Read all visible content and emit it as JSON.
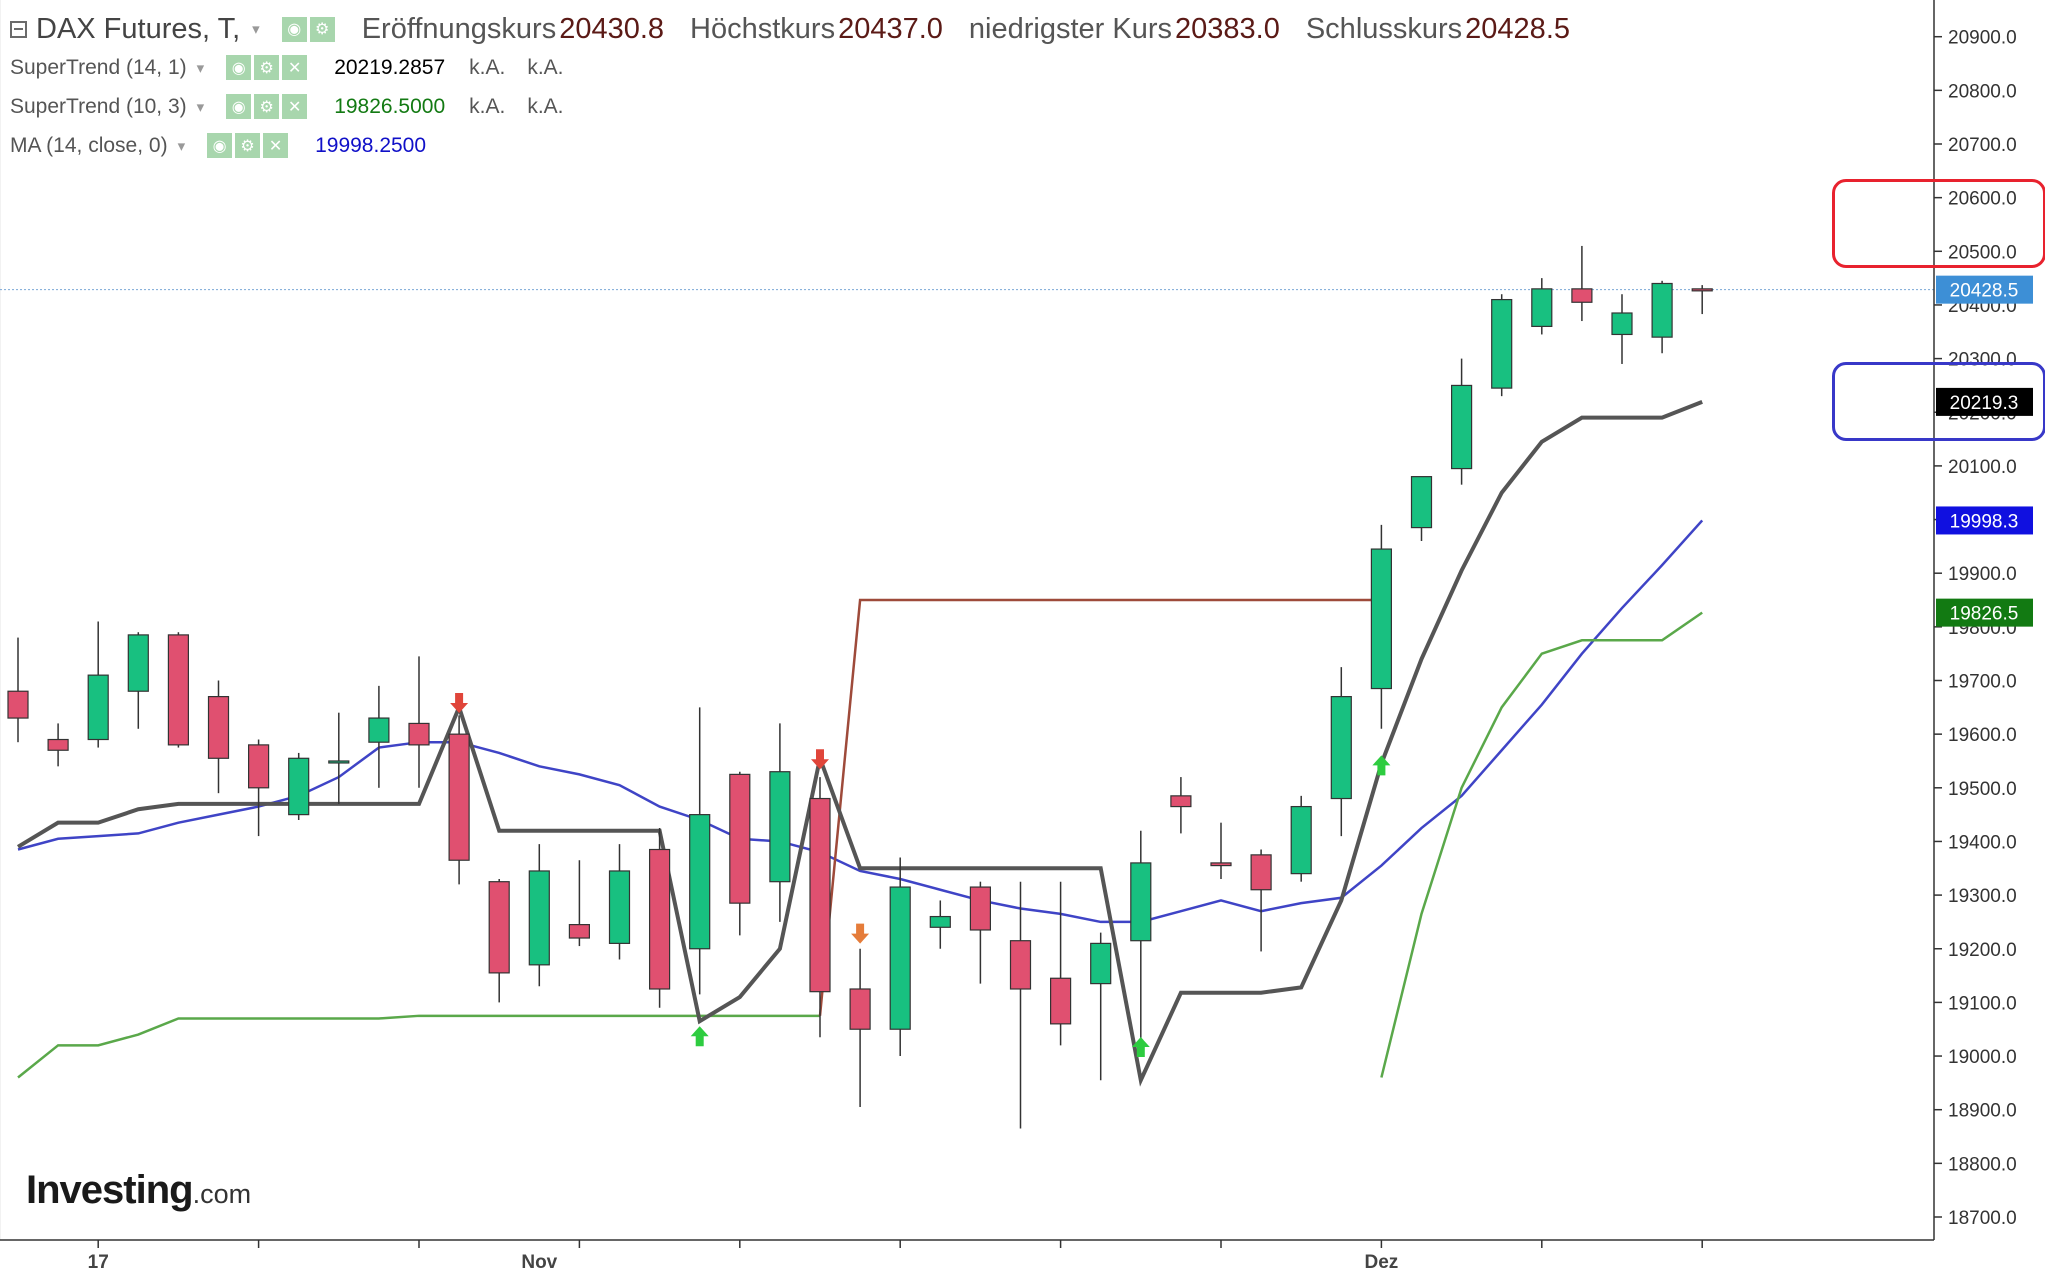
{
  "legend": {
    "symbol": "DAX Futures, T,",
    "open_label": "Eröffnungskurs",
    "open_value": "20430.8",
    "high_label": "Höchstkurs",
    "high_value": "20437.0",
    "low_label": "niedrigster Kurs",
    "low_value": "20383.0",
    "close_label": "Schlusskurs",
    "close_value": "20428.5",
    "indicators": [
      {
        "name": "SuperTrend (14, 1)",
        "value": "20219.2857",
        "na1": "k.A.",
        "na2": "k.A."
      },
      {
        "name": "SuperTrend (10, 3)",
        "value": "19826.5000",
        "na1": "k.A.",
        "na2": "k.A."
      },
      {
        "name": "MA (14, close, 0)",
        "value": "19998.2500"
      }
    ],
    "icons": {
      "eye": "eye-icon",
      "gear": "gear-icon",
      "close": "close-icon",
      "caret": "caret-down-icon"
    }
  },
  "logo": {
    "main": "Investing",
    "sub": ".com"
  },
  "chart_data": {
    "type": "candlestick",
    "title": "DAX Futures, T,",
    "ylim": [
      18650,
      20970
    ],
    "y_ticks": [
      "20900.0",
      "20800.0",
      "20700.0",
      "20600.0",
      "20500.0",
      "20400.0",
      "20300.0",
      "20200.0",
      "20100.0",
      "20000.0",
      "19900.0",
      "19800.0",
      "19700.0",
      "19600.0",
      "19500.0",
      "19400.0",
      "19300.0",
      "19200.0",
      "19100.0",
      "19000.0",
      "18900.0",
      "18800.0",
      "18700.0"
    ],
    "x_labels": [
      {
        "label": "17",
        "index": 2
      },
      {
        "label": "Nov",
        "index": 13
      },
      {
        "label": "Dez",
        "index": 34
      }
    ],
    "candles": [
      {
        "o": 19680,
        "h": 19780,
        "l": 19585,
        "c": 19630
      },
      {
        "o": 19590,
        "h": 19620,
        "l": 19540,
        "c": 19570
      },
      {
        "o": 19590,
        "h": 19810,
        "l": 19575,
        "c": 19710
      },
      {
        "o": 19680,
        "h": 19790,
        "l": 19610,
        "c": 19785
      },
      {
        "o": 19785,
        "h": 19790,
        "l": 19575,
        "c": 19580
      },
      {
        "o": 19670,
        "h": 19700,
        "l": 19490,
        "c": 19555
      },
      {
        "o": 19580,
        "h": 19590,
        "l": 19410,
        "c": 19500
      },
      {
        "o": 19450,
        "h": 19565,
        "l": 19440,
        "c": 19555
      },
      {
        "o": 19550,
        "h": 19640,
        "l": 19470,
        "c": 19550
      },
      {
        "o": 19585,
        "h": 19690,
        "l": 19500,
        "c": 19630
      },
      {
        "o": 19620,
        "h": 19745,
        "l": 19500,
        "c": 19580
      },
      {
        "o": 19600,
        "h": 19635,
        "l": 19320,
        "c": 19365
      },
      {
        "o": 19325,
        "h": 19330,
        "l": 19100,
        "c": 19155
      },
      {
        "o": 19170,
        "h": 19395,
        "l": 19130,
        "c": 19345
      },
      {
        "o": 19245,
        "h": 19365,
        "l": 19205,
        "c": 19220
      },
      {
        "o": 19210,
        "h": 19395,
        "l": 19180,
        "c": 19345
      },
      {
        "o": 19385,
        "h": 19425,
        "l": 19090,
        "c": 19125
      },
      {
        "o": 19200,
        "h": 19650,
        "l": 19115,
        "c": 19450
      },
      {
        "o": 19525,
        "h": 19530,
        "l": 19225,
        "c": 19285
      },
      {
        "o": 19325,
        "h": 19620,
        "l": 19250,
        "c": 19530
      },
      {
        "o": 19480,
        "h": 19520,
        "l": 19035,
        "c": 19120
      },
      {
        "o": 19125,
        "h": 19200,
        "l": 18905,
        "c": 19050
      },
      {
        "o": 19050,
        "h": 19370,
        "l": 19000,
        "c": 19315
      },
      {
        "o": 19240,
        "h": 19290,
        "l": 19200,
        "c": 19260
      },
      {
        "o": 19315,
        "h": 19325,
        "l": 19135,
        "c": 19235
      },
      {
        "o": 19215,
        "h": 19325,
        "l": 18865,
        "c": 19125
      },
      {
        "o": 19145,
        "h": 19325,
        "l": 19020,
        "c": 19060
      },
      {
        "o": 19135,
        "h": 19230,
        "l": 18955,
        "c": 19210
      },
      {
        "o": 19215,
        "h": 19420,
        "l": 19005,
        "c": 19360
      },
      {
        "o": 19485,
        "h": 19520,
        "l": 19415,
        "c": 19465
      },
      {
        "o": 19360,
        "h": 19435,
        "l": 19330,
        "c": 19355
      },
      {
        "o": 19375,
        "h": 19385,
        "l": 19195,
        "c": 19310
      },
      {
        "o": 19340,
        "h": 19485,
        "l": 19325,
        "c": 19465
      },
      {
        "o": 19480,
        "h": 19725,
        "l": 19410,
        "c": 19670
      },
      {
        "o": 19685,
        "h": 19990,
        "l": 19610,
        "c": 19945
      },
      {
        "o": 19985,
        "h": 20080,
        "l": 19960,
        "c": 20080
      },
      {
        "o": 20095,
        "h": 20300,
        "l": 20065,
        "c": 20250
      },
      {
        "o": 20245,
        "h": 20420,
        "l": 20230,
        "c": 20410
      },
      {
        "o": 20360,
        "h": 20450,
        "l": 20345,
        "c": 20430
      },
      {
        "o": 20430,
        "h": 20510,
        "l": 20370,
        "c": 20405
      },
      {
        "o": 20345,
        "h": 20420,
        "l": 20290,
        "c": 20385
      },
      {
        "o": 20340,
        "h": 20445,
        "l": 20310,
        "c": 20440
      },
      {
        "o": 20430,
        "h": 20437,
        "l": 20383,
        "c": 20428.5
      }
    ],
    "series": [
      {
        "name": "SuperTrend (14, 1)",
        "color": "#555555",
        "values": [
          19390,
          19435,
          19435,
          19460,
          19470,
          19470,
          19470,
          19470,
          19470,
          19470,
          19470,
          19650,
          19420,
          19420,
          19420,
          19420,
          19420,
          19065,
          19110,
          19200,
          19555,
          19350,
          19350,
          19350,
          19350,
          19350,
          19350,
          19350,
          18955,
          19118,
          19118,
          19118,
          19128,
          19290,
          19545,
          19740,
          19905,
          20050,
          20145,
          20190,
          20190,
          20190,
          20219.3
        ]
      },
      {
        "name": "SuperTrend (10, 3)",
        "color": "#5aa84a",
        "segments": [
          {
            "start": 0,
            "trend": "up",
            "color": "#5aa84a",
            "values": [
              18960,
              19020,
              19020,
              19040,
              19070,
              19070,
              19070,
              19070,
              19070,
              19070,
              19075,
              19075,
              19075,
              19075,
              19075,
              19075,
              19075,
              19075,
              19075,
              19075,
              19075
            ]
          },
          {
            "start": 20,
            "trend": "down",
            "color": "#9e4a3a",
            "values": [
              19075,
              19850,
              19850,
              19850,
              19850,
              19850,
              19850,
              19850,
              19850,
              19850,
              19850,
              19850,
              19850,
              19850,
              19850
            ]
          },
          {
            "start": 34,
            "trend": "up",
            "color": "#5aa84a",
            "values": [
              18960,
              19265,
              19500,
              19650,
              19750,
              19775,
              19775,
              19775,
              19826.5
            ]
          }
        ]
      },
      {
        "name": "MA (14, close, 0)",
        "color": "#3f44c6",
        "values": [
          19385,
          19405,
          19410,
          19415,
          19435,
          19450,
          19465,
          19485,
          19520,
          19575,
          19585,
          19585,
          19565,
          19540,
          19525,
          19505,
          19465,
          19440,
          19405,
          19400,
          19380,
          19345,
          19330,
          19310,
          19290,
          19275,
          19265,
          19250,
          19250,
          19270,
          19290,
          19270,
          19285,
          19295,
          19355,
          19425,
          19485,
          19570,
          19655,
          19750,
          19835,
          19915,
          19998.3
        ]
      }
    ],
    "signals": [
      {
        "index": 11,
        "dir": "down",
        "price": 19660,
        "color": "#e0453a"
      },
      {
        "index": 17,
        "dir": "up",
        "price": 19035,
        "color": "#2ecc40"
      },
      {
        "index": 20,
        "dir": "down",
        "price": 19555,
        "color": "#e0453a"
      },
      {
        "index": 21,
        "dir": "down",
        "price": 19230,
        "color": "#e57c3a"
      },
      {
        "index": 28,
        "dir": "up",
        "price": 19015,
        "color": "#2ecc40"
      },
      {
        "index": 34,
        "dir": "up",
        "price": 19540,
        "color": "#2ecc40"
      }
    ],
    "price_tags": [
      {
        "label": "20428.5",
        "price": 20428.5,
        "bg": "#3d8fd6"
      },
      {
        "label": "20219.3",
        "price": 20219.3,
        "bg": "#000000"
      },
      {
        "label": "19998.3",
        "price": 19998.3,
        "bg": "#1010e0"
      },
      {
        "label": "19826.5",
        "price": 19826.5,
        "bg": "#127a12"
      }
    ],
    "last_price_line": 20428.5,
    "colors": {
      "bull": "#18c080",
      "bear": "#e05070",
      "wick": "#333333",
      "axis": "#333333"
    }
  }
}
